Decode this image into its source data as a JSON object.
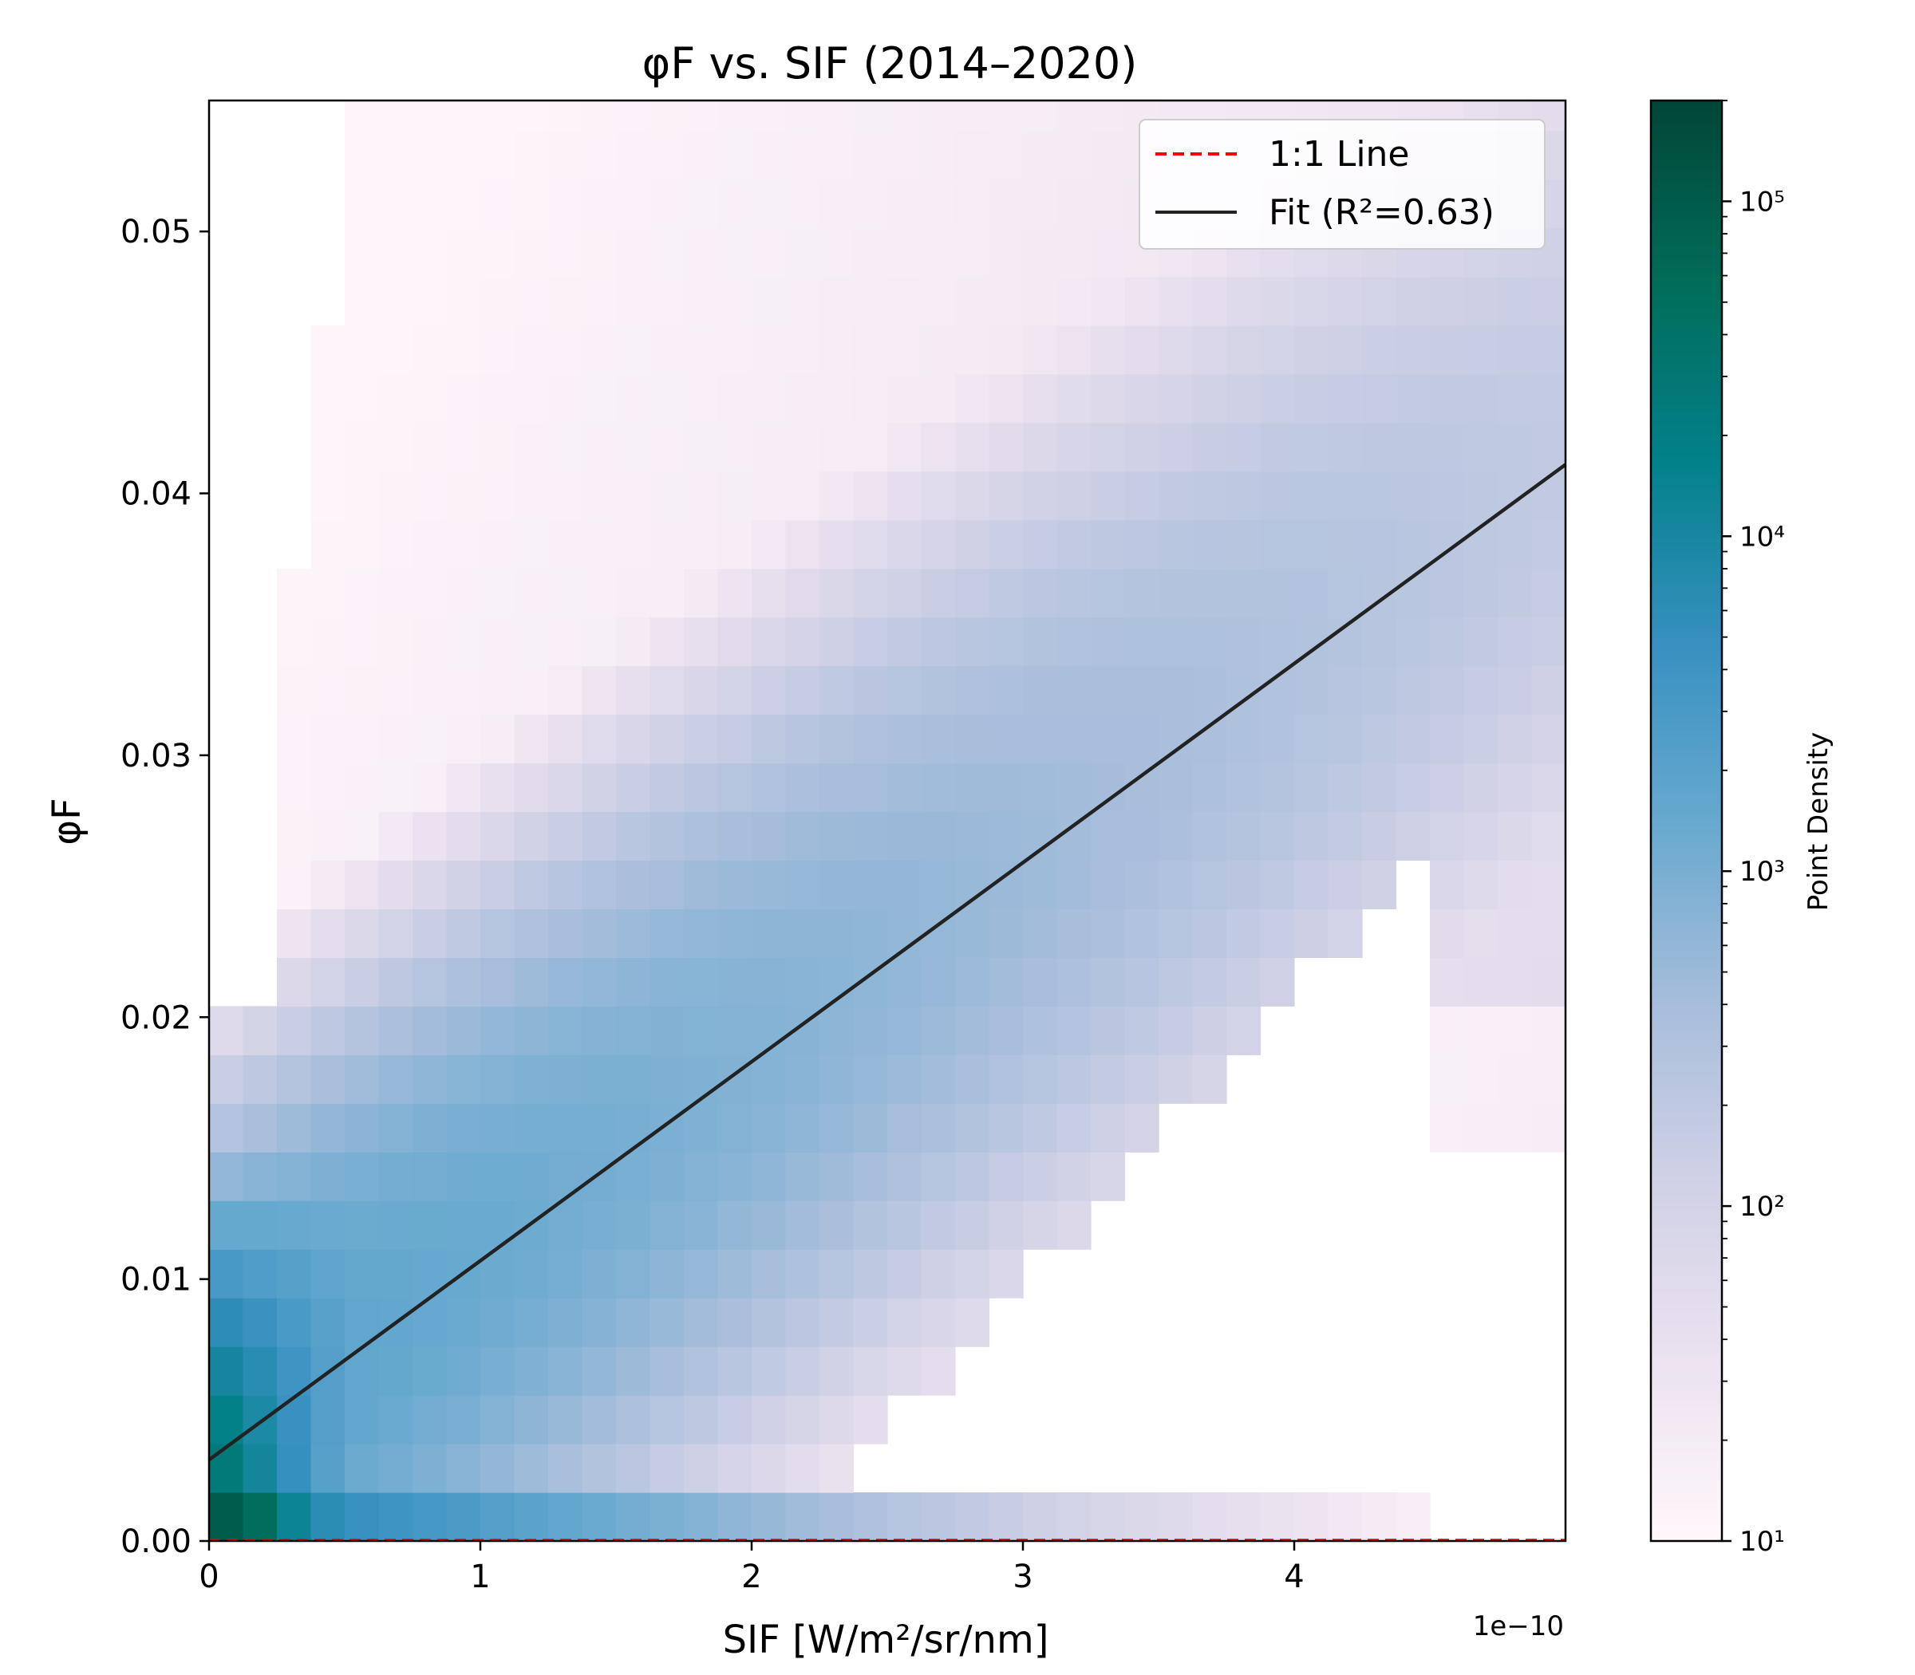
{
  "chart_data": {
    "type": "heatmap",
    "title": "φF vs. SIF (2014–2020)",
    "xlabel": "SIF [W/m²/sr/nm]",
    "ylabel": "φF",
    "x_offset_label": "1e−10",
    "xlim": [
      0,
      5.0
    ],
    "ylim": [
      0,
      0.055
    ],
    "x_ticks": [
      0,
      1,
      2,
      3,
      4
    ],
    "x_tick_labels": [
      "0",
      "1",
      "2",
      "3",
      "4"
    ],
    "y_ticks": [
      0.0,
      0.01,
      0.02,
      0.03,
      0.04,
      0.05
    ],
    "y_tick_labels": [
      "0.00",
      "0.01",
      "0.02",
      "0.03",
      "0.04",
      "0.05"
    ],
    "grid": false,
    "colorbar": {
      "label": "Point Density",
      "scale": "log",
      "range": [
        10,
        200000
      ],
      "ticks": [
        10,
        100,
        1000,
        10000,
        100000
      ],
      "tick_labels": [
        "10¹",
        "10²",
        "10³",
        "10⁴",
        "10⁵"
      ],
      "colormap": "PuBuGn"
    },
    "legend": {
      "placement": "upper-right",
      "entries": [
        {
          "label": "1:1 Line",
          "style": "dashed",
          "color": "#ff0000"
        },
        {
          "label": "Fit (R²=0.63)",
          "style": "solid",
          "color": "#222222"
        }
      ]
    },
    "series": [
      {
        "name": "1:1 Line",
        "kind": "line",
        "x": [
          0,
          5.0
        ],
        "y": [
          0,
          5e-10
        ]
      },
      {
        "name": "Fit (R²=0.63)",
        "kind": "line",
        "x": [
          0,
          5.0
        ],
        "y": [
          0.0031,
          0.0411
        ]
      }
    ],
    "bins": {
      "nx": 40,
      "ny": 30,
      "x_range": [
        0,
        5.0
      ],
      "y_range": [
        0,
        0.0557
      ]
    }
  }
}
